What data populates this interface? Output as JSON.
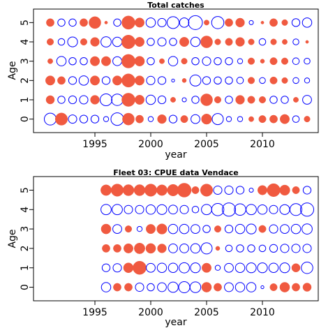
{
  "chart_data": [
    {
      "type": "scatter",
      "title": "Total catches",
      "xlabel": "year",
      "ylabel": "Age",
      "xlim": [
        1989.5,
        2015.0
      ],
      "ylim": [
        -0.7,
        5.7
      ],
      "xticks": [
        1995,
        2000,
        2005,
        2010
      ],
      "yticks": [
        0,
        1,
        2,
        3,
        4,
        5
      ],
      "grid": false,
      "legend": "none",
      "colors": {
        "positive": "#f05a40",
        "negative": "#0000ff"
      },
      "encoding": "bubble radius proportional to residual magnitude; filled red = positive, open blue = negative",
      "years": [
        1991,
        1992,
        1993,
        1994,
        1995,
        1996,
        1997,
        1998,
        1999,
        2000,
        2001,
        2002,
        2003,
        2004,
        2005,
        2006,
        2007,
        2008,
        2009,
        2010,
        2011,
        2012,
        2013,
        2014
      ],
      "ages": [
        0,
        1,
        2,
        3,
        4,
        5
      ],
      "values": {
        "5": [
          0.35,
          -0.3,
          -0.3,
          0.35,
          0.8,
          0.05,
          -0.3,
          1.0,
          0.5,
          -0.5,
          -0.4,
          -0.8,
          -0.5,
          -1.1,
          0.15,
          -0.85,
          0.35,
          0.45,
          -0.1,
          0.05,
          0.35,
          0.2,
          -0.35,
          -0.5
        ],
        "4": [
          0.25,
          -0.25,
          -0.55,
          0.25,
          0.45,
          -0.6,
          -0.5,
          1.05,
          0.5,
          -0.3,
          -0.4,
          -0.3,
          0.5,
          -0.5,
          0.8,
          0.2,
          0.3,
          0.45,
          0.2,
          -0.25,
          0.2,
          0.15,
          -0.2,
          0.05
        ],
        "3": [
          0.15,
          -0.5,
          -0.3,
          -0.3,
          0.5,
          0.5,
          -0.45,
          1.05,
          0.55,
          -0.3,
          0.15,
          -0.5,
          0.2,
          -0.3,
          -0.4,
          -0.3,
          -0.3,
          -0.15,
          0.25,
          0.1,
          0.3,
          0.25,
          -0.25,
          -0.2
        ],
        "2": [
          0.5,
          0.35,
          -0.35,
          -0.5,
          0.5,
          -0.35,
          0.5,
          1.0,
          0.5,
          -0.4,
          -0.35,
          -0.05,
          0.1,
          -0.7,
          -0.35,
          -0.3,
          -0.3,
          -0.25,
          0.25,
          -0.2,
          0.3,
          0.2,
          -0.2,
          -0.15
        ],
        "1": [
          0.4,
          -0.3,
          -0.35,
          -0.4,
          0.45,
          -0.8,
          -0.75,
          1.0,
          0.5,
          -0.5,
          -0.35,
          0.15,
          -0.1,
          -0.3,
          0.8,
          0.25,
          -0.3,
          0.45,
          0.3,
          0.25,
          -0.3,
          -0.3,
          0.15,
          -0.45
        ],
        "0": [
          -0.8,
          0.85,
          -0.4,
          -0.35,
          -0.35,
          -0.15,
          -0.9,
          0.8,
          0.35,
          -0.15,
          0.45,
          -0.35,
          0.3,
          -0.45,
          0.6,
          -0.7,
          -0.15,
          -0.15,
          0.15,
          0.3,
          0.35,
          0.5,
          -0.25,
          0.2
        ]
      }
    },
    {
      "type": "scatter",
      "title": "Fleet 03:  CPUE data Vendace",
      "xlabel": "year",
      "ylabel": "Age",
      "xlim": [
        1989.5,
        2015.0
      ],
      "ylim": [
        -0.7,
        5.7
      ],
      "xticks": [
        1995,
        2000,
        2005,
        2010
      ],
      "yticks": [
        0,
        1,
        2,
        3,
        4,
        5
      ],
      "grid": false,
      "legend": "none",
      "colors": {
        "positive": "#f05a40",
        "negative": "#0000ff"
      },
      "encoding": "bubble radius proportional to residual magnitude; filled red = positive, open blue = negative",
      "years": [
        1996,
        1997,
        1998,
        1999,
        2000,
        2001,
        2002,
        2003,
        2004,
        2005,
        2006,
        2007,
        2008,
        2009,
        2010,
        2011,
        2012,
        2013,
        2014
      ],
      "ages": [
        0,
        1,
        2,
        3,
        4,
        5
      ],
      "values": {
        "5": [
          0.65,
          0.85,
          0.7,
          0.7,
          0.85,
          0.65,
          0.75,
          1.1,
          0.3,
          0.85,
          -0.4,
          -0.4,
          -0.35,
          -0.1,
          0.5,
          0.95,
          0.6,
          0.3,
          -0.35
        ],
        "4": [
          -0.6,
          -0.6,
          -0.4,
          -0.4,
          -0.5,
          -0.55,
          -0.45,
          -0.4,
          -0.25,
          -0.6,
          -0.85,
          -1.0,
          -0.75,
          -0.6,
          -0.5,
          -0.4,
          -0.55,
          -0.8,
          -1.0
        ],
        "3": [
          0.55,
          -0.45,
          0.25,
          -0.15,
          0.5,
          0.6,
          -0.5,
          -0.5,
          -0.45,
          -0.3,
          0.25,
          -0.35,
          -0.5,
          -0.55,
          0.3,
          -0.4,
          -0.45,
          -0.5,
          -0.6
        ],
        "2": [
          0.35,
          0.35,
          0.5,
          0.65,
          0.55,
          0.45,
          -0.45,
          -0.45,
          -0.5,
          -0.7,
          0.1,
          -0.25,
          -0.3,
          -0.3,
          -0.25,
          -0.35,
          -0.4,
          -0.4,
          -0.4
        ],
        "1": [
          -0.35,
          -0.4,
          0.55,
          1.0,
          -0.45,
          -0.5,
          -0.5,
          -0.6,
          -0.55,
          0.5,
          -0.15,
          -0.45,
          -0.5,
          -0.55,
          -0.55,
          -0.5,
          -0.55,
          0.4,
          -0.75
        ],
        "0": [
          -0.5,
          0.35,
          0.35,
          -0.4,
          -0.3,
          -0.45,
          -0.6,
          -0.7,
          -0.65,
          0.55,
          0.35,
          -0.45,
          -0.5,
          -0.5,
          -0.05,
          0.3,
          0.55,
          0.35,
          0.4
        ]
      }
    }
  ]
}
